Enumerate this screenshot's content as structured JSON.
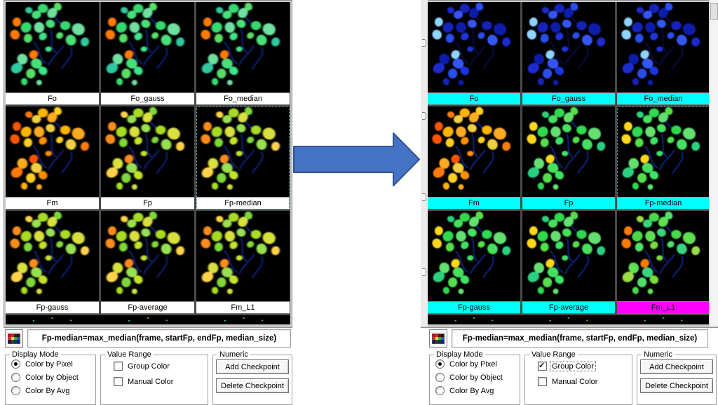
{
  "panels": [
    {
      "id": "left",
      "cells": [
        {
          "label": "Fo",
          "label_bg": "#ffffff",
          "scheme": "cool",
          "selected": false
        },
        {
          "label": "Fo_gauss",
          "label_bg": "#ffffff",
          "scheme": "cool",
          "selected": false
        },
        {
          "label": "Fo_median",
          "label_bg": "#ffffff",
          "scheme": "cool",
          "selected": false
        },
        {
          "label": "Fm",
          "label_bg": "#ffffff",
          "scheme": "hotOrange",
          "selected": false
        },
        {
          "label": "Fp",
          "label_bg": "#ffffff",
          "scheme": "warmGreen",
          "selected": false
        },
        {
          "label": "Fp-median",
          "label_bg": "#ffffff",
          "scheme": "warmGreen",
          "selected": true
        },
        {
          "label": "Fp-gauss",
          "label_bg": "#ffffff",
          "scheme": "warmGreen",
          "selected": false
        },
        {
          "label": "Fp-average",
          "label_bg": "#ffffff",
          "scheme": "warmGreen",
          "selected": false
        },
        {
          "label": "Fm_L1",
          "label_bg": "#ffffff",
          "scheme": "warmGreen",
          "selected": false
        }
      ],
      "formula": "Fp-median=max_median(frame, startFp, endFp, median_size)",
      "groups": {
        "display_mode": {
          "title": "Display Mode",
          "options": [
            {
              "label": "Color by Pixel",
              "selected": true
            },
            {
              "label": "Color by Object",
              "selected": false
            },
            {
              "label": "Color By Avg",
              "selected": false
            }
          ]
        },
        "value_range": {
          "title": "Value Range",
          "options": [
            {
              "label": "Group Color",
              "checked": false,
              "focused": false
            },
            {
              "label": "Manual Color",
              "checked": false,
              "focused": false
            }
          ]
        },
        "numeric": {
          "title": "Numeric",
          "buttons": [
            {
              "label": "Add Checkpoint"
            },
            {
              "label": "Delete Checkpoint"
            }
          ]
        }
      }
    },
    {
      "id": "right",
      "cells": [
        {
          "label": "Fo",
          "label_bg": "#00ffff",
          "scheme": "blue",
          "selected": false
        },
        {
          "label": "Fo_gauss",
          "label_bg": "#00ffff",
          "scheme": "blue",
          "selected": false
        },
        {
          "label": "Fo_median",
          "label_bg": "#00ffff",
          "scheme": "blue",
          "selected": false
        },
        {
          "label": "Fm",
          "label_bg": "#00ffff",
          "scheme": "hotOrange",
          "selected": false
        },
        {
          "label": "Fp",
          "label_bg": "#00ffff",
          "scheme": "green",
          "selected": false
        },
        {
          "label": "Fp-median",
          "label_bg": "#00ffff",
          "scheme": "green",
          "selected": true
        },
        {
          "label": "Fp-gauss",
          "label_bg": "#00ffff",
          "scheme": "green",
          "selected": false
        },
        {
          "label": "Fp-average",
          "label_bg": "#00ffff",
          "scheme": "green",
          "selected": false
        },
        {
          "label": "Fm_L1",
          "label_bg": "#ff00ff",
          "scheme": "greenHot",
          "selected": false
        }
      ],
      "formula": "Fp-median=max_median(frame, startFp, endFp, median_size)",
      "groups": {
        "display_mode": {
          "title": "Display Mode",
          "options": [
            {
              "label": "Color by Pixel",
              "selected": true
            },
            {
              "label": "Color by Object",
              "selected": false
            },
            {
              "label": "Color By Avg",
              "selected": false
            }
          ]
        },
        "value_range": {
          "title": "Value Range",
          "options": [
            {
              "label": "Group Color",
              "checked": true,
              "focused": true
            },
            {
              "label": "Manual Color",
              "checked": false,
              "focused": false
            }
          ]
        },
        "numeric": {
          "title": "Numeric",
          "buttons": [
            {
              "label": "Add Checkpoint"
            },
            {
              "label": "Delete Checkpoint"
            }
          ]
        }
      }
    }
  ],
  "colors": {
    "group_label_bg": "#00ffff",
    "highlight_label_bg": "#ff00ff",
    "plain_label_bg": "#ffffff",
    "arrow_fill": "#4472c4",
    "arrow_stroke": "#2f528f"
  }
}
